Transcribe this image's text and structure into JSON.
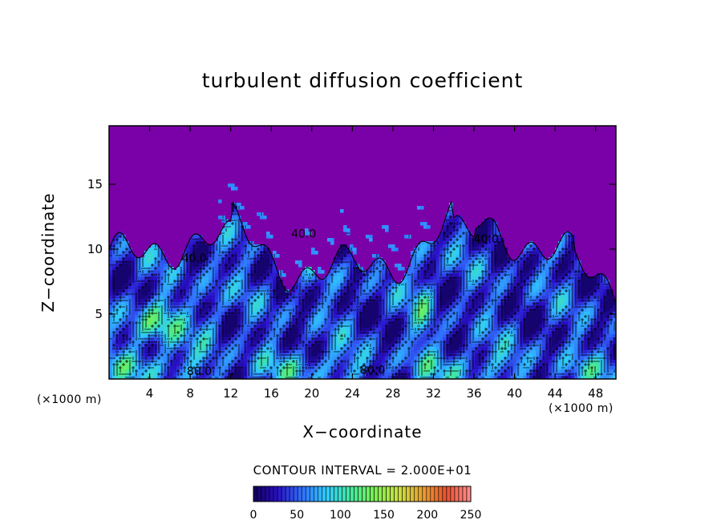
{
  "chart_data": {
    "type": "heatmap",
    "title": "turbulent diffusion coefficient",
    "xlabel": "X−coordinate",
    "ylabel": "Z−coordinate",
    "x_unit": "(×1000 m)",
    "xlim": [
      0,
      50
    ],
    "ylim": [
      0,
      19.5
    ],
    "x_ticks": [
      4,
      8,
      12,
      16,
      20,
      24,
      28,
      32,
      36,
      40,
      44,
      48
    ],
    "y_ticks": [
      5,
      10,
      15
    ],
    "contour_interval_text": "CONTOUR INTERVAL = 2.000E+01",
    "contour_labels": [
      {
        "text": "40.0",
        "x": 19.2,
        "y": 10.9
      },
      {
        "text": "40.0",
        "x": 8.4,
        "y": 9.0
      },
      {
        "text": "40.0",
        "x": 37.2,
        "y": 10.5
      },
      {
        "text": "80.0",
        "x": 8.9,
        "y": 0.3
      },
      {
        "text": "80.0",
        "x": 26.0,
        "y": 0.4
      }
    ],
    "colorbar": {
      "min": 0,
      "max": 250,
      "ticks": [
        0,
        50,
        100,
        150,
        200,
        250
      ],
      "colors": [
        "#10005a",
        "#2a10c8",
        "#3070ff",
        "#30c8ff",
        "#40e8a0",
        "#78f050",
        "#c8e040",
        "#e8a030",
        "#e85030",
        "#ff9090"
      ]
    },
    "background_value_color": "#7a00a8"
  }
}
